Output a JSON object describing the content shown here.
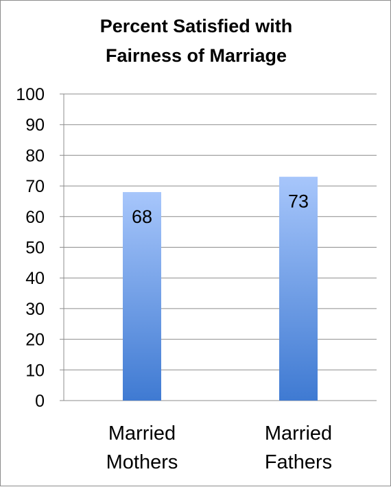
{
  "chart_data": {
    "type": "bar",
    "title": [
      "Percent Satisfied with",
      "Fairness of Marriage"
    ],
    "categories": [
      [
        "Married",
        "Mothers"
      ],
      [
        "Married",
        "Fathers"
      ]
    ],
    "values": [
      68,
      73
    ],
    "data_labels": [
      "68",
      "73"
    ],
    "ylim": [
      0,
      100
    ],
    "yticks": [
      0,
      10,
      20,
      30,
      40,
      50,
      60,
      70,
      80,
      90,
      100
    ],
    "grid": true,
    "legend": "none",
    "colors": {
      "bar_top": "#a7c6fb",
      "bar_bottom": "#3f7ad2",
      "grid": "#8c8c8c",
      "axis": "#8c8c8c"
    }
  }
}
